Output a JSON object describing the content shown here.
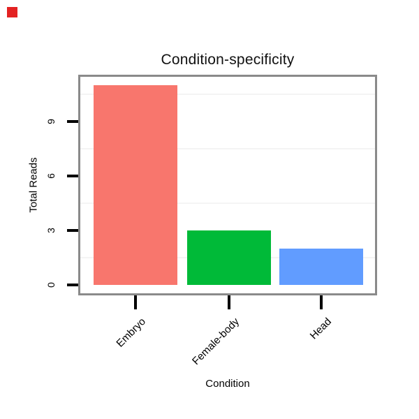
{
  "marker": {
    "color": "#e32222"
  },
  "chart_data": {
    "type": "bar",
    "title": "Condition-specificity",
    "xlabel": "Condition",
    "ylabel": "Total Reads",
    "categories": [
      "Embryo",
      "Female-body",
      "Head"
    ],
    "values": [
      11,
      3,
      2
    ],
    "bar_colors": [
      "#F8766D",
      "#00BA38",
      "#619CFF"
    ],
    "ytick_values": [
      0,
      3,
      6,
      9
    ],
    "ytick_labels": [
      "0",
      "3",
      "6",
      "9"
    ],
    "minor_gridlines": [
      1.5,
      4.5,
      7.5,
      10.5
    ],
    "ylim": [
      0,
      11.5
    ],
    "grid": "minor-horizontal-only",
    "legend": "none",
    "plot_border_color": "#8a8a8a",
    "tick_color": "#000000",
    "gridline_color": "#f4f4f4",
    "background_color": "#ffffff"
  }
}
